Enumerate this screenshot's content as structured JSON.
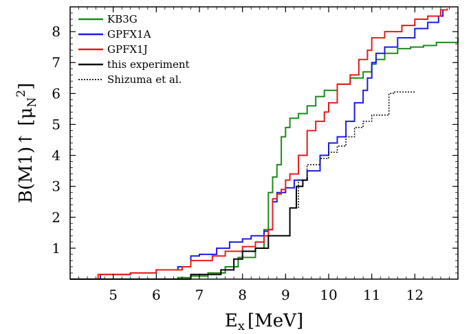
{
  "chart_data": {
    "type": "line",
    "step": true,
    "xlabel": "E",
    "xlabel_sub": "x",
    "xlabel_unit": "[MeV]",
    "ylabel": "B(M1)↑ [μ",
    "ylabel_sub": "N",
    "ylabel_sup": "2",
    "ylabel_end": "]",
    "xlim": [
      4.0,
      13.0
    ],
    "ylim": [
      0.0,
      8.8
    ],
    "xticks": [
      5,
      6,
      7,
      8,
      9,
      10,
      11,
      12
    ],
    "yticks": [
      1,
      2,
      3,
      4,
      5,
      6,
      7,
      8
    ],
    "grid": false,
    "legend_position": "top-left",
    "series": [
      {
        "name": "KB3G",
        "color": "#1a8a1a",
        "dash": "solid",
        "x": [
          4.0,
          6.5,
          6.8,
          7.2,
          7.6,
          7.9,
          8.3,
          8.5,
          8.6,
          8.7,
          8.8,
          8.9,
          9.0,
          9.1,
          9.3,
          9.5,
          9.7,
          9.9,
          10.2,
          10.5,
          10.8,
          11.0,
          11.1,
          11.3,
          11.6,
          11.9,
          12.2,
          12.5,
          13.0
        ],
        "y": [
          0.0,
          0.05,
          0.1,
          0.2,
          0.4,
          0.7,
          1.0,
          1.6,
          2.8,
          3.3,
          3.7,
          4.6,
          4.9,
          5.2,
          5.35,
          5.6,
          5.9,
          6.1,
          6.3,
          6.5,
          6.7,
          6.95,
          7.1,
          7.3,
          7.45,
          7.5,
          7.55,
          7.65,
          7.8
        ]
      },
      {
        "name": "GPFX1A",
        "color": "#1a1ae6",
        "dash": "solid",
        "x": [
          4.0,
          4.7,
          5.4,
          6.0,
          6.5,
          6.8,
          7.0,
          7.4,
          7.7,
          8.0,
          8.2,
          8.5,
          8.6,
          8.7,
          8.8,
          9.0,
          9.2,
          9.5,
          9.8,
          10.0,
          10.2,
          10.4,
          10.6,
          10.8,
          10.9,
          11.0,
          11.1,
          11.3,
          11.6,
          12.0,
          12.3,
          12.55,
          12.65
        ],
        "y": [
          0.0,
          0.15,
          0.2,
          0.3,
          0.4,
          0.75,
          0.8,
          1.0,
          1.2,
          1.3,
          1.4,
          1.55,
          1.6,
          2.5,
          2.8,
          2.95,
          3.2,
          3.5,
          4.0,
          4.4,
          4.6,
          5.1,
          5.7,
          6.1,
          6.5,
          7.0,
          7.3,
          7.5,
          7.8,
          8.1,
          8.3,
          8.5,
          8.7
        ]
      },
      {
        "name": "GPFX1J",
        "color": "#e61a1a",
        "dash": "solid",
        "x": [
          4.0,
          4.65,
          5.4,
          6.0,
          6.6,
          6.8,
          7.3,
          7.6,
          8.0,
          8.3,
          8.5,
          8.6,
          8.7,
          8.8,
          8.9,
          9.0,
          9.1,
          9.3,
          9.5,
          9.7,
          9.9,
          10.0,
          10.2,
          10.5,
          10.7,
          10.9,
          11.0,
          11.3,
          11.7,
          12.0,
          12.3,
          12.6,
          12.75
        ],
        "y": [
          0.0,
          0.15,
          0.2,
          0.3,
          0.4,
          0.6,
          0.75,
          0.9,
          1.05,
          1.2,
          1.4,
          1.6,
          2.6,
          2.75,
          2.9,
          3.2,
          3.4,
          4.0,
          4.8,
          5.1,
          5.4,
          5.7,
          6.3,
          6.6,
          7.1,
          7.4,
          7.8,
          8.0,
          8.2,
          8.4,
          8.5,
          8.7,
          8.75
        ]
      },
      {
        "name": "this experiment",
        "color": "#000000",
        "dash": "solid",
        "x": [
          4.0,
          6.8,
          7.5,
          7.8,
          8.0,
          8.3,
          8.6,
          9.1,
          9.25,
          9.4,
          9.5
        ],
        "y": [
          0.0,
          0.15,
          0.3,
          0.65,
          0.9,
          1.0,
          1.4,
          2.3,
          3.0,
          3.2,
          3.3
        ]
      },
      {
        "name": "Shizuma et al.",
        "color": "#000000",
        "dash": "dotted",
        "x": [
          4.0,
          6.8,
          7.5,
          7.8,
          8.0,
          8.3,
          8.6,
          9.1,
          9.3,
          9.5,
          9.8,
          10.0,
          10.2,
          10.4,
          10.6,
          10.8,
          11.0,
          11.4,
          11.5,
          12.0
        ],
        "y": [
          0.0,
          0.15,
          0.3,
          0.65,
          0.9,
          1.0,
          1.4,
          2.3,
          3.2,
          3.7,
          3.9,
          4.1,
          4.3,
          4.6,
          4.9,
          5.1,
          5.3,
          6.0,
          6.05,
          6.05
        ]
      }
    ]
  }
}
